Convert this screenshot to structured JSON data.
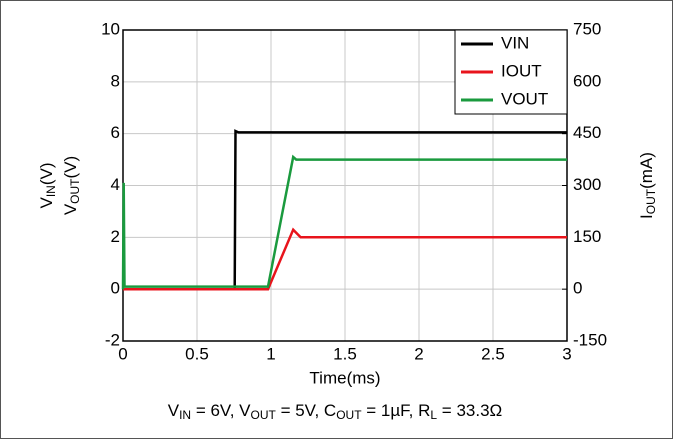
{
  "chart_data": {
    "type": "line",
    "xlabel": "Time(ms)",
    "ylabel_lines": [
      [
        "V",
        "IN",
        "(V)"
      ],
      [
        "V",
        "OUT",
        "(V)"
      ]
    ],
    "y2label": [
      "I",
      "OUT",
      "(mA)"
    ],
    "caption": [
      "V",
      "IN",
      " = 6V, V",
      "OUT",
      " = 5V, C",
      "OUT",
      " = 1µF, R",
      "L",
      " = 33.3Ω"
    ],
    "xlim": [
      0,
      3
    ],
    "xticks": [
      0,
      0.5,
      1,
      1.5,
      2,
      2.5,
      3
    ],
    "ylim": [
      -2,
      10
    ],
    "yticks": [
      -2,
      0,
      2,
      4,
      6,
      8,
      10
    ],
    "y2lim": [
      -150,
      750
    ],
    "y2ticks": [
      -150,
      0,
      150,
      300,
      450,
      600,
      750
    ],
    "grid": true,
    "legend": "upper right",
    "series": [
      {
        "name": "VIN",
        "color": "#000000",
        "x": [
          0,
          0.755,
          0.76,
          0.78,
          3
        ],
        "values": [
          0,
          0,
          6.1,
          6.05,
          6.05
        ]
      },
      {
        "name": "IOUT",
        "color": "#e8141c",
        "axis": "y2",
        "x": [
          0,
          0.98,
          1.15,
          1.2,
          3
        ],
        "values": [
          0,
          0,
          172,
          150,
          150
        ]
      },
      {
        "name": "VOUT",
        "color": "#1a9a3e",
        "x": [
          0,
          0.005,
          0.01,
          0.98,
          1.15,
          1.17,
          3
        ],
        "values": [
          0,
          4.1,
          0.1,
          0.1,
          5.1,
          5.0,
          5.0
        ]
      }
    ]
  }
}
